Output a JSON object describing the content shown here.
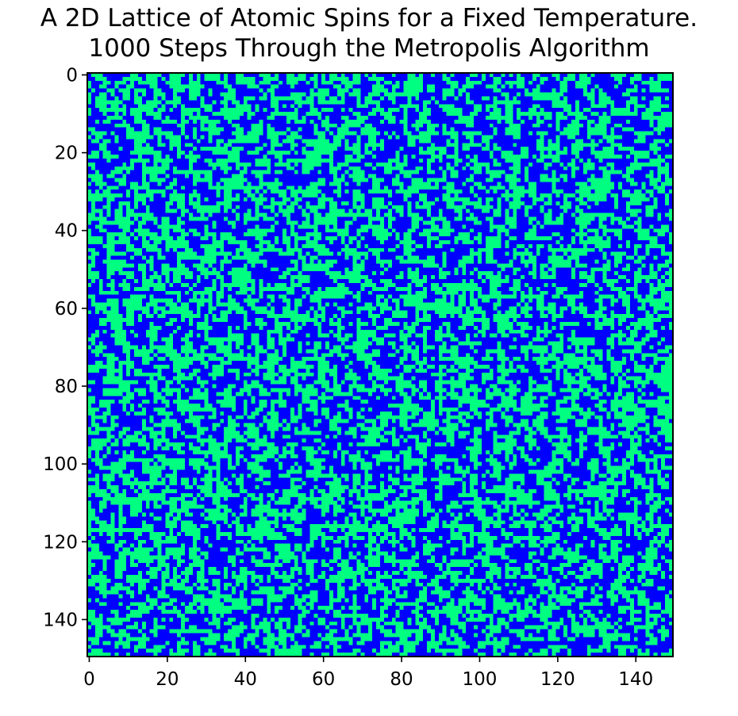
{
  "title_lines": [
    "A 2D Lattice of Atomic Spins for a Fixed Temperature.",
    "1000 Steps Through the Metropolis Algorithm"
  ],
  "chart_data": {
    "type": "heatmap",
    "title": "A 2D Lattice of Atomic Spins for a Fixed Temperature.\n1000 Steps Through the Metropolis Algorithm",
    "xlabel": "",
    "ylabel": "",
    "grid_size": [
      150,
      150
    ],
    "xlim": [
      0,
      150
    ],
    "ylim": [
      150,
      0
    ],
    "y_axis_inverted": true,
    "x_ticks": [
      0,
      20,
      40,
      60,
      80,
      100,
      120,
      140
    ],
    "y_ticks": [
      0,
      20,
      40,
      60,
      80,
      100,
      120,
      140
    ],
    "values": "random binary spin states (+1 / -1), roughly equal proportion",
    "spin_values": [
      -1,
      1
    ],
    "colors": {
      "spin_down": "#0000ff",
      "spin_up": "#00ff80"
    },
    "grid": false,
    "legend": "none"
  }
}
